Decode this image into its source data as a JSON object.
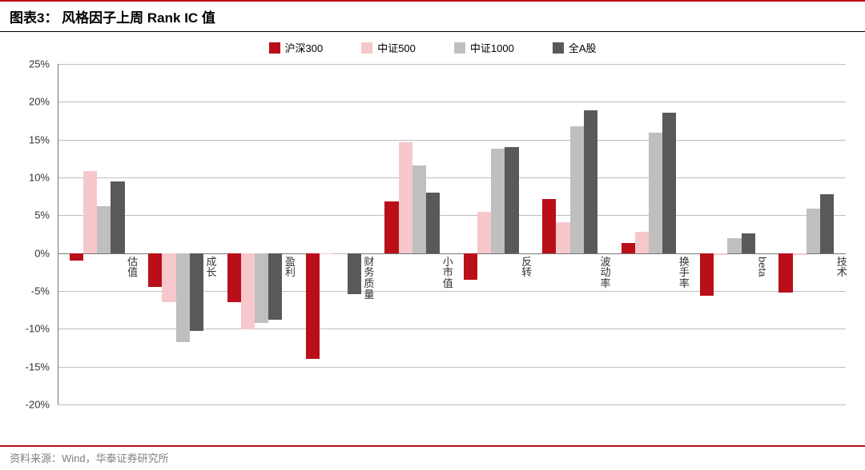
{
  "title": "图表3：  风格因子上周 Rank IC 值",
  "footer": "资料来源：Wind，华泰证券研究所",
  "chart": {
    "type": "bar",
    "background_color": "#ffffff",
    "grid_color": "#bfbfbf",
    "axis_color": "#777777",
    "label_color": "#333333",
    "label_fontsize": 13,
    "title_fontsize": 17,
    "ylim": [
      -20,
      25
    ],
    "ytick_step": 5,
    "ytick_format_suffix": "%",
    "bar_group_gap_ratio": 0.3,
    "categories": [
      "估值",
      "成长",
      "盈利",
      "财务质量",
      "小市值",
      "反转",
      "波动率",
      "换手率",
      "beta",
      "技术"
    ],
    "series": [
      {
        "name": "沪深300",
        "color": "#b90f18",
        "values": [
          -1.0,
          -4.5,
          -6.5,
          -14.0,
          6.8,
          -3.5,
          7.2,
          1.3,
          -5.6,
          -5.2
        ]
      },
      {
        "name": "中证500",
        "color": "#f6c8cb",
        "values": [
          10.8,
          -6.5,
          -10.1,
          -0.1,
          14.6,
          5.5,
          4.1,
          2.8,
          -0.2,
          -0.2
        ]
      },
      {
        "name": "中证1000",
        "color": "#bfbfbf",
        "values": [
          6.2,
          -11.8,
          -9.2,
          -0.1,
          11.6,
          13.8,
          16.8,
          15.9,
          2.0,
          5.9
        ]
      },
      {
        "name": "全A股",
        "color": "#595959",
        "values": [
          9.5,
          -10.3,
          -8.8,
          -5.4,
          8.0,
          14.0,
          18.9,
          18.6,
          2.6,
          7.8
        ]
      }
    ]
  }
}
